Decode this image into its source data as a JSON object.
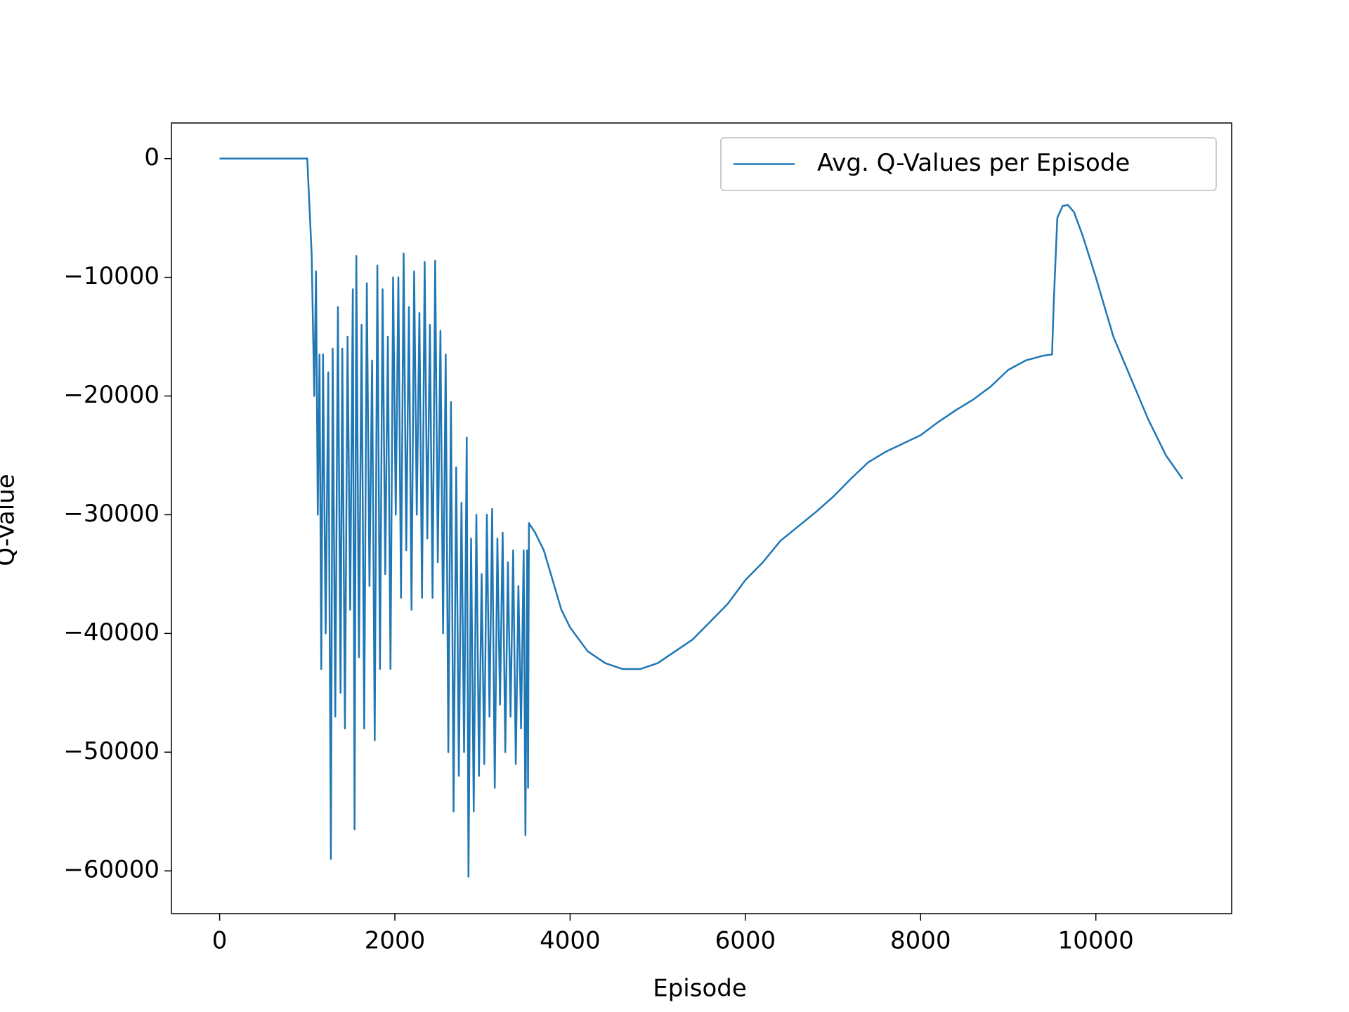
{
  "chart_data": {
    "type": "line",
    "xlabel": "Episode",
    "ylabel": "Q-Value",
    "x": [
      0,
      1000,
      1050,
      1080,
      1100,
      1120,
      1140,
      1160,
      1180,
      1210,
      1240,
      1270,
      1290,
      1320,
      1350,
      1380,
      1400,
      1430,
      1460,
      1490,
      1520,
      1540,
      1560,
      1590,
      1620,
      1650,
      1680,
      1710,
      1740,
      1770,
      1800,
      1830,
      1860,
      1890,
      1920,
      1950,
      1980,
      2010,
      2040,
      2070,
      2100,
      2130,
      2160,
      2190,
      2220,
      2250,
      2280,
      2310,
      2340,
      2370,
      2400,
      2430,
      2460,
      2490,
      2520,
      2550,
      2580,
      2610,
      2640,
      2670,
      2700,
      2730,
      2760,
      2790,
      2820,
      2840,
      2870,
      2900,
      2930,
      2960,
      2990,
      3020,
      3050,
      3080,
      3110,
      3140,
      3170,
      3200,
      3230,
      3260,
      3290,
      3320,
      3350,
      3380,
      3410,
      3440,
      3470,
      3490,
      3510,
      3520,
      3530,
      3600,
      3700,
      3800,
      3900,
      4000,
      4200,
      4400,
      4600,
      4800,
      5000,
      5200,
      5400,
      5600,
      5800,
      6000,
      6200,
      6400,
      6600,
      6800,
      7000,
      7200,
      7400,
      7600,
      7800,
      8000,
      8200,
      8400,
      8600,
      8800,
      9000,
      9200,
      9400,
      9500,
      9520,
      9560,
      9620,
      9680,
      9750,
      9850,
      10000,
      10200,
      10400,
      10600,
      10800,
      10990
    ],
    "series": [
      {
        "name": "Avg. Q-Values per Episode",
        "color": "#1f77b4",
        "values": [
          0,
          0,
          -8000,
          -20000,
          -9500,
          -30000,
          -16500,
          -43000,
          -16500,
          -40000,
          -18000,
          -59000,
          -16000,
          -47000,
          -12500,
          -45000,
          -16000,
          -48000,
          -15000,
          -38000,
          -11000,
          -56500,
          -8200,
          -42000,
          -14000,
          -48000,
          -10500,
          -36000,
          -17000,
          -49000,
          -9000,
          -43000,
          -11000,
          -35000,
          -15000,
          -43000,
          -10000,
          -30000,
          -10000,
          -37000,
          -8000,
          -33000,
          -12500,
          -38000,
          -9500,
          -30000,
          -13000,
          -37000,
          -8700,
          -32000,
          -14000,
          -37000,
          -8600,
          -34000,
          -14500,
          -40000,
          -16500,
          -50000,
          -20500,
          -55000,
          -26000,
          -52000,
          -29000,
          -50000,
          -23500,
          -60500,
          -32000,
          -55000,
          -30000,
          -52000,
          -35000,
          -51000,
          -30000,
          -47000,
          -29500,
          -53000,
          -32000,
          -46000,
          -31500,
          -50000,
          -34000,
          -47000,
          -33000,
          -51000,
          -36000,
          -48000,
          -33000,
          -57000,
          -33000,
          -53000,
          -30700,
          -31500,
          -33000,
          -35500,
          -38000,
          -39500,
          -41500,
          -42500,
          -43000,
          -43000,
          -42500,
          -41500,
          -40500,
          -39000,
          -37500,
          -35500,
          -34000,
          -32200,
          -31000,
          -29800,
          -28500,
          -27000,
          -25600,
          -24700,
          -24000,
          -23300,
          -22200,
          -21200,
          -20300,
          -19200,
          -17800,
          -17000,
          -16600,
          -16500,
          -12000,
          -5000,
          -4000,
          -3900,
          -4500,
          -6500,
          -10000,
          -15000,
          -18500,
          -22000,
          -25000,
          -27000
        ]
      }
    ],
    "xlim": [
      -550,
      11550
    ],
    "ylim": [
      -63600,
      3000
    ],
    "xticks": [
      0,
      2000,
      4000,
      6000,
      8000,
      10000
    ],
    "yticks": [
      0,
      {
        "value": -10000,
        "label": "−10000"
      },
      {
        "value": -20000,
        "label": "−20000"
      },
      {
        "value": -30000,
        "label": "−30000"
      },
      {
        "value": -40000,
        "label": "−40000"
      },
      {
        "value": -50000,
        "label": "−50000"
      },
      {
        "value": -60000,
        "label": "−60000"
      }
    ],
    "legend": "upper right"
  }
}
